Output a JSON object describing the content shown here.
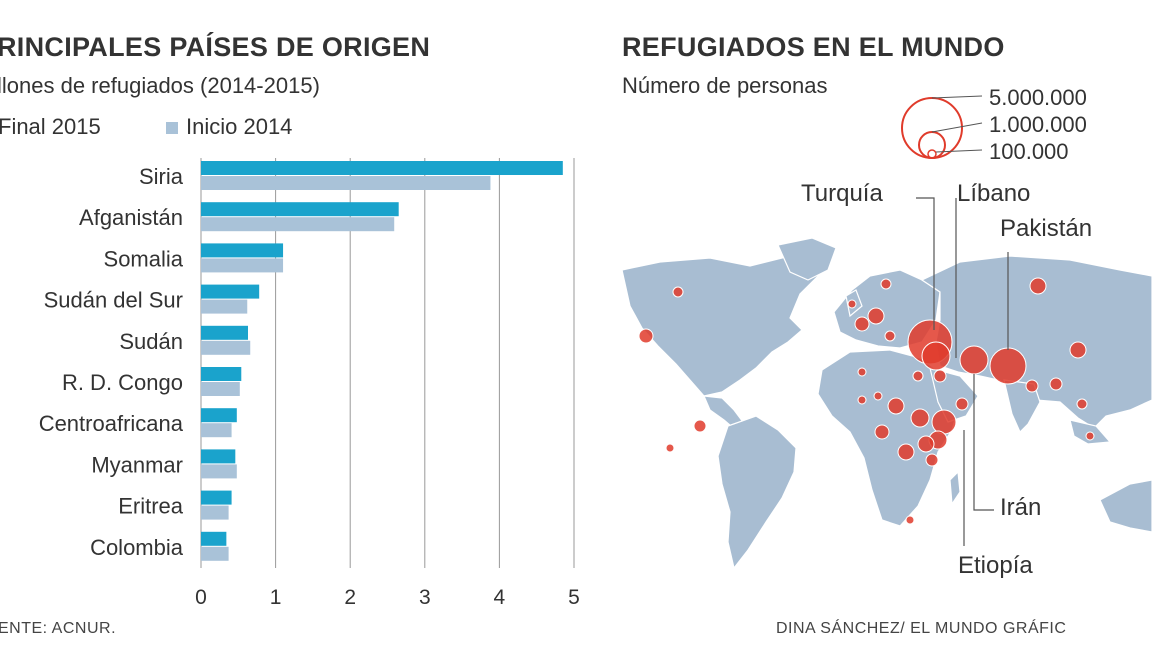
{
  "left": {
    "title": "RINCIPALES PAÍSES DE ORIGEN",
    "subtitle": "llones de refugiados (2014-2015)",
    "legend_final": "Final 2015",
    "legend_inicio": "Inicio 2014",
    "source": "ENTE: ACNUR."
  },
  "right": {
    "title": "REFUGIADOS EN EL MUNDO",
    "subtitle": "Número de personas",
    "scale_labels": [
      "5.000.000",
      "1.000.000",
      "100.000"
    ],
    "scale_values": [
      5000000,
      1000000,
      100000
    ],
    "callouts": [
      "Turquía",
      "Líbano",
      "Pakistán",
      "Irán",
      "Etiopía"
    ],
    "credit": "DINA SÁNCHEZ/ EL MUNDO GRÁFIC"
  },
  "colors": {
    "final": "#1aa3cc",
    "inicio": "#a9c2d8",
    "grid": "#999999",
    "map_land": "#a8bdd2",
    "bubble": "#e03b2b",
    "bubble_fill": "rgba(224,59,43,0.85)"
  },
  "chart_data": {
    "type": "bar",
    "orientation": "horizontal",
    "title": "RINCIPALES PAÍSES DE ORIGEN",
    "xlabel": "Millones de refugiados",
    "xlim": [
      0,
      5
    ],
    "xticks": [
      0,
      1,
      2,
      3,
      4,
      5
    ],
    "categories": [
      "Siria",
      "Afganistán",
      "Somalia",
      "Sudán del Sur",
      "Sudán",
      "R. D. Congo",
      "Centroafricana",
      "Myanmar",
      "Eritrea",
      "Colombia"
    ],
    "series": [
      {
        "name": "Final 2015",
        "values": [
          4.85,
          2.65,
          1.1,
          0.78,
          0.63,
          0.54,
          0.48,
          0.46,
          0.41,
          0.34
        ]
      },
      {
        "name": "Inicio 2014",
        "values": [
          3.88,
          2.59,
          1.1,
          0.62,
          0.66,
          0.52,
          0.41,
          0.48,
          0.37,
          0.37
        ]
      }
    ],
    "legend": "top-left",
    "grid": true
  }
}
